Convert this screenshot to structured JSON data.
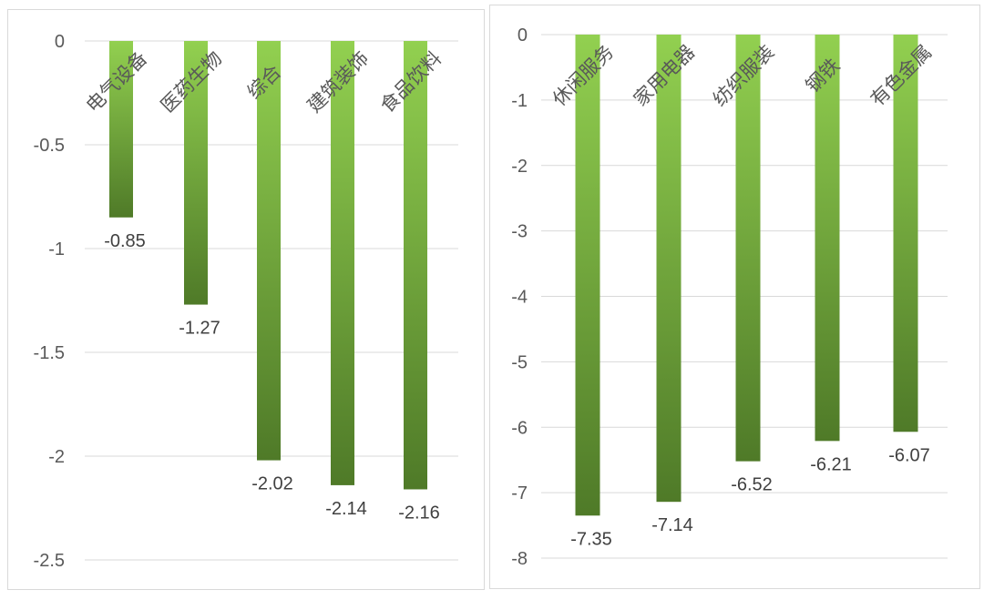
{
  "chart_data": [
    {
      "type": "bar",
      "categories": [
        "电气设备",
        "医药生物",
        "综合",
        "建筑装饰",
        "食品饮料"
      ],
      "values": [
        -0.85,
        -1.27,
        -2.02,
        -2.14,
        -2.16
      ],
      "data_labels": [
        "-0.85",
        "-1.27",
        "-2.02",
        "-2.14",
        "-2.16"
      ],
      "y_ticks": [
        0,
        -0.5,
        -1,
        -1.5,
        -2,
        -2.5
      ],
      "y_tick_labels": [
        "0",
        "-0.5",
        "-1",
        "-1.5",
        "-2",
        "-2.5"
      ],
      "ylim": [
        -2.5,
        0
      ],
      "grid": true,
      "title": "",
      "xlabel": "",
      "ylabel": "",
      "colors": {
        "bar_top": "#92d050",
        "bar_bottom": "#4f7a28",
        "grid": "#d9d9d9"
      }
    },
    {
      "type": "bar",
      "categories": [
        "休闲服务",
        "家用电器",
        "纺织服装",
        "钢铁",
        "有色金属"
      ],
      "values": [
        -7.35,
        -7.14,
        -6.52,
        -6.21,
        -6.07
      ],
      "data_labels": [
        "-7.35",
        "-7.14",
        "-6.52",
        "-6.21",
        "-6.07"
      ],
      "y_ticks": [
        0,
        -1,
        -2,
        -3,
        -4,
        -5,
        -6,
        -7,
        -8
      ],
      "y_tick_labels": [
        "0",
        "-1",
        "-2",
        "-3",
        "-4",
        "-5",
        "-6",
        "-7",
        "-8"
      ],
      "ylim": [
        -8,
        0
      ],
      "grid": true,
      "title": "",
      "xlabel": "",
      "ylabel": "",
      "colors": {
        "bar_top": "#92d050",
        "bar_bottom": "#4f7a28",
        "grid": "#d9d9d9"
      }
    }
  ]
}
